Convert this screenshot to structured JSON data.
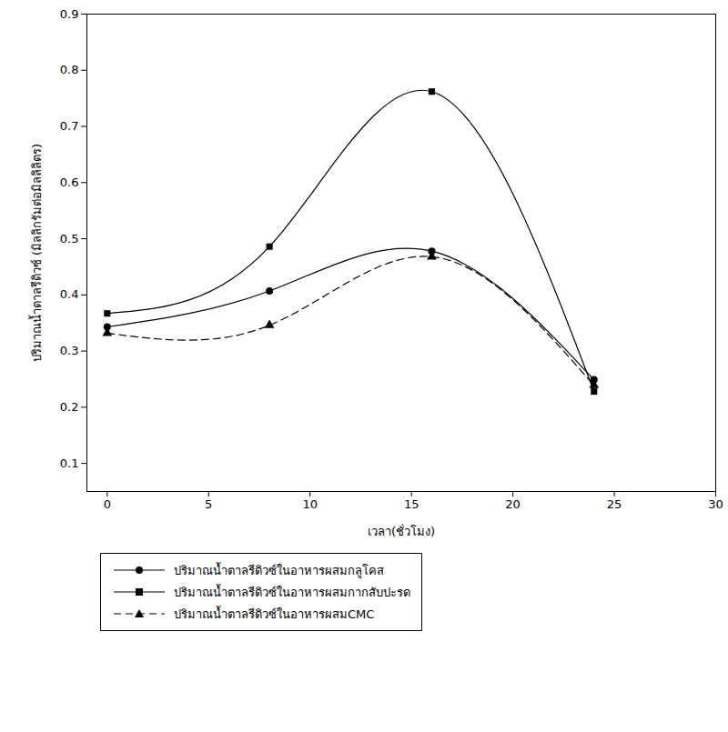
{
  "chart_data": {
    "type": "line",
    "x_label": "เวลา(ชั่วโมง)",
    "y_label": "ปริมาณน้ำตาลรีดิวซ์ (มิลลิกรัมต่อมิลลิลิตร)",
    "x": [
      0,
      8,
      16,
      24
    ],
    "series": [
      {
        "name": "ปริมาณน้ำตาลรีดิวซ์ในอาหารผสมกลูโคส",
        "color": "#000000",
        "marker": "circle",
        "line_style": "solid",
        "values": [
          0.343,
          0.407,
          0.478,
          0.249
        ]
      },
      {
        "name": "ปริมาณน้ำตาลรีดิวซ์ในอาหารผสมกากสับปะรด",
        "color": "#000000",
        "marker": "square",
        "line_style": "solid",
        "values": [
          0.367,
          0.486,
          0.762,
          0.228
        ]
      },
      {
        "name": "ปริมาณน้ำตาลรีดิวซ์ในอาหารผสมCMC",
        "color": "#000000",
        "marker": "triangle",
        "line_style": "dashed",
        "values": [
          0.332,
          0.346,
          0.468,
          0.239
        ]
      }
    ],
    "xlim": [
      -1,
      30
    ],
    "xticks": [
      0,
      5,
      10,
      15,
      20,
      25,
      30
    ],
    "ylim": [
      0.05,
      0.9
    ],
    "yticks": [
      0.1,
      0.2,
      0.3,
      0.4,
      0.5,
      0.6,
      0.7,
      0.8,
      0.9
    ],
    "grid": false,
    "legend": "bottom"
  }
}
